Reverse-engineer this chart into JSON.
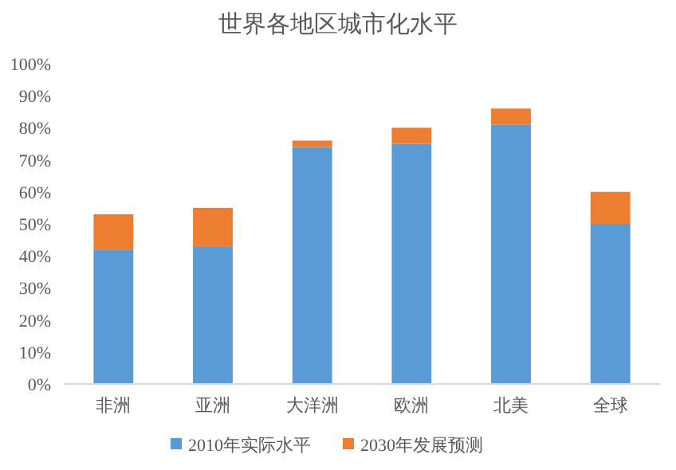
{
  "chart_data": {
    "type": "bar",
    "title": "世界各地区城市化水平",
    "stacked": true,
    "categories": [
      "非洲",
      "亚洲",
      "大洋洲",
      "欧洲",
      "北美",
      "全球"
    ],
    "series": [
      {
        "name": "2010年实际水平",
        "color": "#5b9bd5",
        "values": [
          42,
          43,
          74,
          75,
          81,
          50
        ]
      },
      {
        "name": "2030年发展预测",
        "color": "#ed7d31",
        "values": [
          11,
          12,
          2,
          5,
          5,
          10
        ]
      }
    ],
    "ylim": [
      0,
      100
    ],
    "yticks": [
      {
        "value": 0,
        "label": "0%"
      },
      {
        "value": 10,
        "label": "10%"
      },
      {
        "value": 20,
        "label": "20%"
      },
      {
        "value": 30,
        "label": "30%"
      },
      {
        "value": 40,
        "label": "40%"
      },
      {
        "value": 50,
        "label": "50%"
      },
      {
        "value": 60,
        "label": "60%"
      },
      {
        "value": 70,
        "label": "70%"
      },
      {
        "value": 80,
        "label": "80%"
      },
      {
        "value": 90,
        "label": "90%"
      },
      {
        "value": 100,
        "label": "100%"
      }
    ],
    "grid": false,
    "legend": "bottom"
  }
}
